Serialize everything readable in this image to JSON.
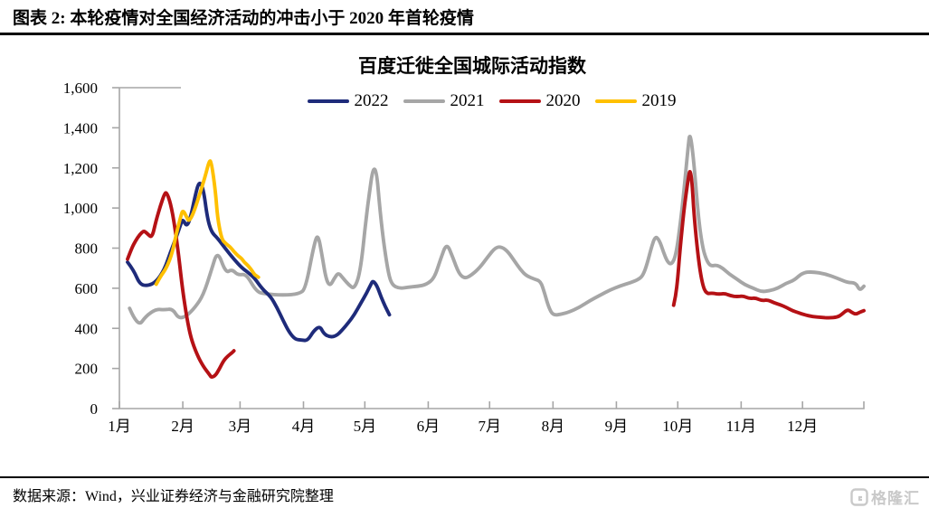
{
  "header": {
    "title": "图表 2: 本轮疫情对全国经济活动的冲击小于 2020 年首轮疫情"
  },
  "footer": {
    "source": "数据来源：Wind，兴业证券经济与金融研究院整理",
    "brand": "格隆汇"
  },
  "chart_data": {
    "type": "line",
    "title": "百度迁徙全国城际活动指数",
    "legend_position": "top-center",
    "grid": false,
    "x_axis": {
      "labels": [
        "1月",
        "2月",
        "3月",
        "4月",
        "5月",
        "6月",
        "7月",
        "8月",
        "9月",
        "10月",
        "11月",
        "12月"
      ],
      "month_start_days": [
        1,
        32,
        60,
        91,
        121,
        152,
        182,
        213,
        244,
        274,
        305,
        335
      ],
      "domain_days": [
        1,
        365
      ]
    },
    "y_axis": {
      "min": 0,
      "max": 1600,
      "tick_step": 200,
      "tick_labels": [
        "0",
        "200",
        "400",
        "600",
        "800",
        "1,000",
        "1,200",
        "1,400",
        "1,600"
      ]
    },
    "axis_color": "#a6a6a6",
    "series": [
      {
        "name": "2021",
        "color": "#a6a6a6",
        "segments": [
          [
            [
              6,
              500
            ],
            [
              10,
              405
            ],
            [
              14,
              462
            ],
            [
              19,
              496
            ],
            [
              23,
              492
            ],
            [
              27,
              498
            ],
            [
              30,
              448
            ],
            [
              34,
              462
            ],
            [
              38,
              505
            ],
            [
              42,
              565
            ],
            [
              46,
              690
            ],
            [
              49,
              790
            ],
            [
              53,
              675
            ],
            [
              56,
              695
            ],
            [
              59,
              665
            ],
            [
              63,
              672
            ],
            [
              68,
              583
            ],
            [
              72,
              572
            ],
            [
              81,
              565
            ],
            [
              89,
              572
            ],
            [
              92,
              598
            ],
            [
              96,
              810
            ],
            [
              98,
              875
            ],
            [
              100,
              770
            ],
            [
              102,
              645
            ],
            [
              104,
              610
            ],
            [
              106,
              648
            ],
            [
              108,
              678
            ],
            [
              110,
              655
            ],
            [
              113,
              618
            ],
            [
              116,
              595
            ],
            [
              119,
              690
            ],
            [
              122,
              990
            ],
            [
              126,
              1272
            ],
            [
              129,
              920
            ],
            [
              132,
              700
            ],
            [
              134,
              618
            ],
            [
              138,
              598
            ],
            [
              142,
              605
            ],
            [
              147,
              610
            ],
            [
              151,
              618
            ],
            [
              155,
              650
            ],
            [
              158,
              745
            ],
            [
              161,
              828
            ],
            [
              164,
              755
            ],
            [
              167,
              672
            ],
            [
              170,
              648
            ],
            [
              173,
              665
            ],
            [
              177,
              700
            ],
            [
              181,
              755
            ],
            [
              185,
              805
            ],
            [
              188,
              806
            ],
            [
              191,
              782
            ],
            [
              194,
              738
            ],
            [
              197,
              694
            ],
            [
              200,
              662
            ],
            [
              204,
              645
            ],
            [
              207,
              635
            ],
            [
              209,
              572
            ],
            [
              211,
              502
            ],
            [
              213,
              465
            ],
            [
              217,
              470
            ],
            [
              221,
              482
            ],
            [
              226,
              505
            ],
            [
              231,
              538
            ],
            [
              236,
              565
            ],
            [
              241,
              592
            ],
            [
              246,
              612
            ],
            [
              251,
              628
            ],
            [
              255,
              645
            ],
            [
              257,
              665
            ],
            [
              259,
              720
            ],
            [
              261,
              800
            ],
            [
              263,
              860
            ],
            [
              265,
              840
            ],
            [
              267,
              780
            ],
            [
              269,
              730
            ],
            [
              271,
              718
            ],
            [
              273,
              760
            ],
            [
              275,
              900
            ],
            [
              277,
              1080
            ],
            [
              279,
              1300
            ],
            [
              280,
              1385
            ],
            [
              282,
              1220
            ],
            [
              284,
              960
            ],
            [
              286,
              810
            ],
            [
              288,
              740
            ],
            [
              290,
              710
            ],
            [
              293,
              716
            ],
            [
              296,
              700
            ],
            [
              299,
              672
            ],
            [
              303,
              645
            ],
            [
              307,
              616
            ],
            [
              311,
              600
            ],
            [
              315,
              582
            ],
            [
              319,
              588
            ],
            [
              323,
              600
            ],
            [
              327,
              625
            ],
            [
              331,
              640
            ],
            [
              335,
              678
            ],
            [
              340,
              682
            ],
            [
              346,
              672
            ],
            [
              352,
              650
            ],
            [
              357,
              628
            ],
            [
              361,
              628
            ],
            [
              363,
              588
            ],
            [
              365,
              610
            ]
          ]
        ]
      },
      {
        "name": "2022",
        "color": "#1e2b7a",
        "segments": [
          [
            [
              5,
              730
            ],
            [
              8,
              690
            ],
            [
              11,
              618
            ],
            [
              15,
              612
            ],
            [
              19,
              632
            ],
            [
              23,
              692
            ],
            [
              26,
              780
            ],
            [
              29,
              860
            ],
            [
              31,
              920
            ],
            [
              32,
              945
            ],
            [
              34,
              905
            ],
            [
              36,
              960
            ],
            [
              38,
              1060
            ],
            [
              40,
              1135
            ],
            [
              42,
              1100
            ],
            [
              44,
              950
            ],
            [
              46,
              880
            ],
            [
              49,
              850
            ],
            [
              53,
              795
            ],
            [
              57,
              745
            ],
            [
              61,
              700
            ],
            [
              64,
              678
            ],
            [
              67,
              652
            ],
            [
              71,
              595
            ],
            [
              75,
              558
            ],
            [
              78,
              505
            ],
            [
              81,
              440
            ],
            [
              84,
              380
            ],
            [
              87,
              345
            ],
            [
              90,
              342
            ],
            [
              93,
              338
            ],
            [
              96,
              388
            ],
            [
              99,
              412
            ],
            [
              101,
              372
            ],
            [
              104,
              356
            ],
            [
              107,
              362
            ],
            [
              110,
              392
            ],
            [
              113,
              428
            ],
            [
              116,
              470
            ],
            [
              119,
              525
            ],
            [
              122,
              578
            ],
            [
              124,
              620
            ],
            [
              125,
              638
            ],
            [
              127,
              612
            ],
            [
              129,
              555
            ],
            [
              131,
              508
            ],
            [
              133,
              468
            ]
          ]
        ]
      },
      {
        "name": "2020",
        "color": "#b51115",
        "segments": [
          [
            [
              5,
              745
            ],
            [
              7,
              800
            ],
            [
              9,
              838
            ],
            [
              11,
              868
            ],
            [
              13,
              888
            ],
            [
              15,
              868
            ],
            [
              17,
              852
            ],
            [
              19,
              940
            ],
            [
              21,
              1010
            ],
            [
              23,
              1070
            ],
            [
              24,
              1080
            ],
            [
              26,
              1025
            ],
            [
              28,
              915
            ],
            [
              30,
              762
            ],
            [
              32,
              582
            ],
            [
              34,
              450
            ],
            [
              36,
              350
            ],
            [
              39,
              268
            ],
            [
              42,
              210
            ],
            [
              45,
              170
            ],
            [
              46,
              155
            ],
            [
              48,
              165
            ],
            [
              50,
              200
            ],
            [
              52,
              240
            ],
            [
              54,
              262
            ],
            [
              56,
              278
            ],
            [
              57,
              288
            ]
          ],
          [
            [
              272,
              515
            ],
            [
              273,
              560
            ],
            [
              274,
              650
            ],
            [
              275,
              780
            ],
            [
              277,
              990
            ],
            [
              279,
              1140
            ],
            [
              280,
              1196
            ],
            [
              281,
              1130
            ],
            [
              282,
              960
            ],
            [
              284,
              750
            ],
            [
              286,
              620
            ],
            [
              288,
              572
            ],
            [
              291,
              576
            ],
            [
              294,
              570
            ],
            [
              297,
              574
            ],
            [
              300,
              562
            ],
            [
              303,
              558
            ],
            [
              306,
              562
            ],
            [
              309,
              548
            ],
            [
              312,
              552
            ],
            [
              315,
              538
            ],
            [
              318,
              542
            ],
            [
              321,
              528
            ],
            [
              324,
              518
            ],
            [
              327,
              505
            ],
            [
              330,
              488
            ],
            [
              333,
              478
            ],
            [
              336,
              468
            ],
            [
              340,
              458
            ],
            [
              344,
              455
            ],
            [
              348,
              452
            ],
            [
              352,
              456
            ],
            [
              354,
              468
            ],
            [
              357,
              495
            ],
            [
              359,
              480
            ],
            [
              361,
              470
            ],
            [
              363,
              480
            ],
            [
              365,
              488
            ]
          ]
        ]
      },
      {
        "name": "2019",
        "color": "#ffc000",
        "segments": [
          [
            [
              19,
              620
            ],
            [
              21,
              658
            ],
            [
              24,
              700
            ],
            [
              27,
              780
            ],
            [
              29,
              880
            ],
            [
              31,
              958
            ],
            [
              32,
              992
            ],
            [
              34,
              952
            ],
            [
              35,
              934
            ],
            [
              37,
              968
            ],
            [
              40,
              1060
            ],
            [
              43,
              1160
            ],
            [
              45,
              1238
            ],
            [
              46,
              1230
            ],
            [
              48,
              1080
            ],
            [
              49,
              950
            ],
            [
              51,
              845
            ],
            [
              53,
              822
            ],
            [
              55,
              808
            ],
            [
              57,
              782
            ],
            [
              59,
              762
            ],
            [
              61,
              746
            ],
            [
              62,
              730
            ],
            [
              64,
              712
            ],
            [
              66,
              686
            ],
            [
              67,
              668
            ],
            [
              69,
              655
            ]
          ]
        ]
      }
    ],
    "legend_order": [
      "2022",
      "2021",
      "2020",
      "2019"
    ]
  }
}
